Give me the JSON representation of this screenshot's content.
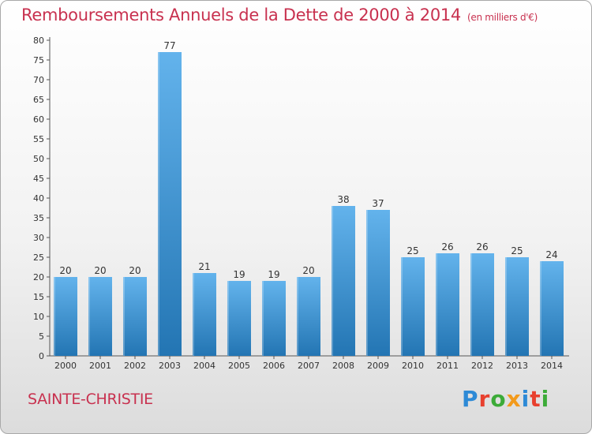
{
  "header": {
    "title": "Remboursements Annuels de la Dette de 2000 à 2014",
    "unit": "(en milliers d'€)"
  },
  "footer": {
    "city": "SAINTE-CHRISTIE",
    "logo": "Proxiti"
  },
  "colors": {
    "title": "#c8314f",
    "bar_light": "#63b3ec",
    "bar_dark": "#2375b3",
    "logo_letters": [
      "#2d8ad6",
      "#e8402e",
      "#3cab38",
      "#f39a1b",
      "#2d8ad6",
      "#e8402e",
      "#3cab38"
    ]
  },
  "chart_data": {
    "type": "bar",
    "categories": [
      "2000",
      "2001",
      "2002",
      "2003",
      "2004",
      "2005",
      "2006",
      "2007",
      "2008",
      "2009",
      "2010",
      "2011",
      "2012",
      "2013",
      "2014"
    ],
    "values": [
      20,
      20,
      20,
      77,
      21,
      19,
      19,
      20,
      38,
      37,
      25,
      26,
      26,
      25,
      24
    ],
    "title": "Remboursements Annuels de la Dette de 2000 à 2014",
    "subtitle": "(en milliers d'€)",
    "ylim": [
      0,
      80
    ],
    "yticks": [
      0,
      5,
      10,
      15,
      20,
      25,
      30,
      35,
      40,
      45,
      50,
      55,
      60,
      65,
      70,
      75,
      80
    ],
    "grid": false,
    "data_labels": true
  }
}
